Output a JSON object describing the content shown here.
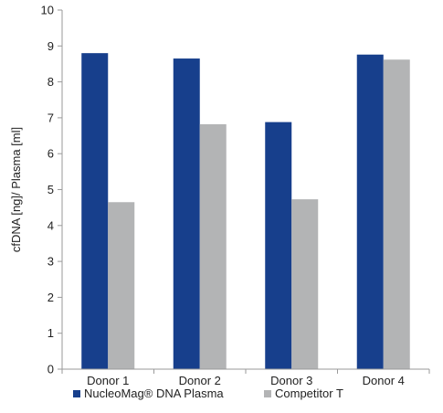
{
  "chart_data": {
    "type": "bar",
    "categories": [
      "Donor 1",
      "Donor 2",
      "Donor 3",
      "Donor 4"
    ],
    "series": [
      {
        "name": "NucleoMag® DNA Plasma",
        "values": [
          8.8,
          8.65,
          6.88,
          8.76
        ],
        "color": "#173f8c"
      },
      {
        "name": "Competitor T",
        "values": [
          4.65,
          6.82,
          4.73,
          8.62
        ],
        "color": "#b3b4b5"
      }
    ],
    "title": "",
    "xlabel": "",
    "ylabel": "cfDNA [ng]/ Plasma [ml]",
    "ylim": [
      0,
      10
    ],
    "yticks": [
      0,
      1,
      2,
      3,
      4,
      5,
      6,
      7,
      8,
      9,
      10
    ],
    "grid": false,
    "legend_position": "bottom"
  }
}
